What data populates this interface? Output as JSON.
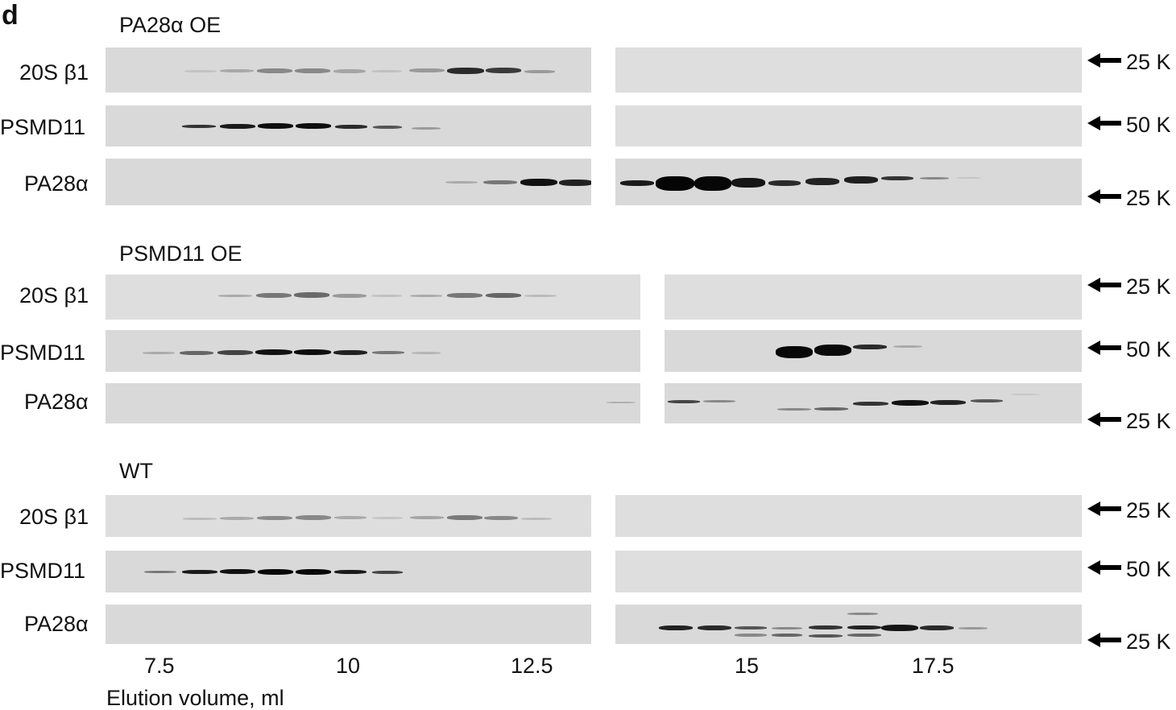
{
  "figure": {
    "panel_letter": "d",
    "marker_arrow_icon": "left-arrow-icon",
    "x_axis": {
      "label": "Elution volume, ml",
      "ticks": [
        "7.5",
        "10",
        "12.5",
        "15",
        "17.5"
      ]
    },
    "groups": [
      {
        "title": "PA28α OE",
        "rows": [
          {
            "label": "20S β1",
            "marker": "25 K"
          },
          {
            "label": "PSMD11",
            "marker": "50 K"
          },
          {
            "label": "PA28α",
            "marker": "25 K"
          }
        ]
      },
      {
        "title": "PSMD11 OE",
        "rows": [
          {
            "label": "20S β1",
            "marker": "25 K"
          },
          {
            "label": "PSMD11",
            "marker": "50 K"
          },
          {
            "label": "PA28α",
            "marker": "25 K"
          }
        ]
      },
      {
        "title": "WT",
        "rows": [
          {
            "label": "20S β1",
            "marker": "25 K"
          },
          {
            "label": "PSMD11",
            "marker": "50 K"
          },
          {
            "label": "PA28α",
            "marker": "25 K"
          }
        ]
      }
    ]
  }
}
